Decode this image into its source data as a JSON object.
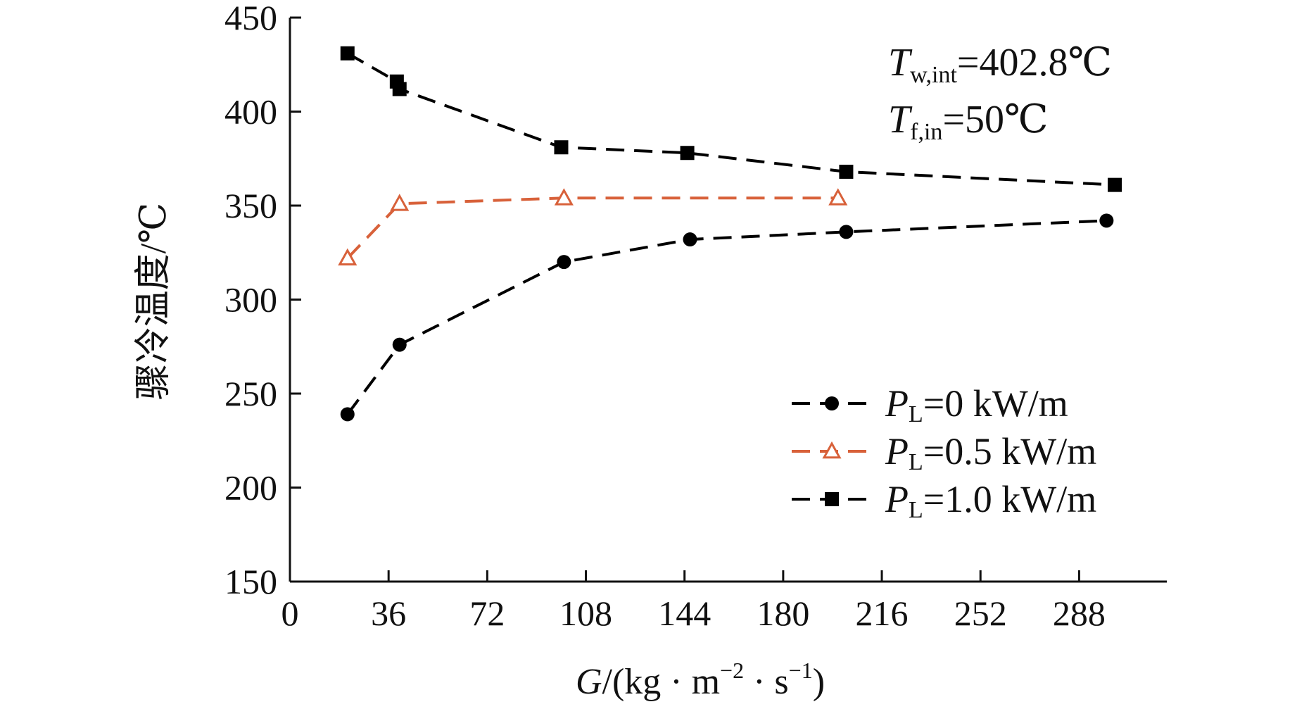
{
  "chart_data": {
    "type": "line",
    "xlabel": "G/(kg · m⁻² · s⁻¹)",
    "ylabel": "骤冷温度/℃",
    "xlim": [
      0,
      320
    ],
    "ylim": [
      150,
      450
    ],
    "xticks": [
      0,
      36,
      72,
      108,
      144,
      180,
      216,
      252,
      288
    ],
    "yticks": [
      150,
      200,
      250,
      300,
      350,
      400,
      450
    ],
    "grid": false,
    "legend_position": "lower-right",
    "annotations": [
      {
        "main": "T",
        "sub": "w,int",
        "rest": "=402.8℃"
      },
      {
        "main": "T",
        "sub": "f,in",
        "rest": "=50℃"
      }
    ],
    "series": [
      {
        "name": "PL=0 kW/m",
        "label_main": "P",
        "label_sub": "L",
        "label_rest": "=0 kW/m",
        "color": "#000000",
        "marker": "circle",
        "x": [
          21,
          40,
          100,
          146,
          203,
          298
        ],
        "y": [
          239,
          276,
          320,
          332,
          336,
          342
        ]
      },
      {
        "name": "PL=0.5 kW/m",
        "label_main": "P",
        "label_sub": "L",
        "label_rest": "=0.5 kW/m",
        "color": "#D8613A",
        "marker": "triangle-open",
        "x": [
          21,
          40,
          100,
          200
        ],
        "y": [
          322,
          351,
          354,
          354
        ]
      },
      {
        "name": "PL=1.0 kW/m",
        "label_main": "P",
        "label_sub": "L",
        "label_rest": "=1.0 kW/m",
        "color": "#000000",
        "marker": "square",
        "x": [
          21,
          39,
          40,
          99,
          145,
          203,
          301
        ],
        "y": [
          431,
          416,
          412,
          381,
          378,
          368,
          361
        ]
      }
    ]
  }
}
